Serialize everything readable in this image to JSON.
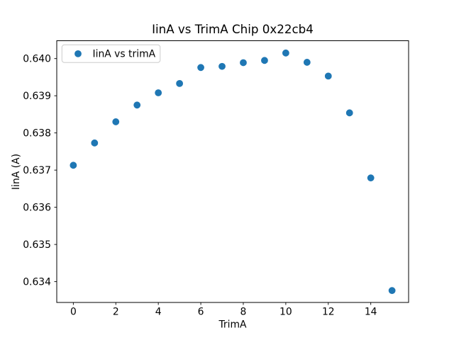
{
  "chart_data": {
    "type": "scatter",
    "title": "IinA vs TrimA Chip 0x22cb4",
    "xlabel": "TrimA",
    "ylabel": "IinA (A)",
    "legend": [
      "IinA vs trimA"
    ],
    "legend_position": "upper left",
    "marker_color": "#1f77b4",
    "grid": false,
    "x": [
      0,
      1,
      2,
      3,
      4,
      5,
      6,
      7,
      8,
      9,
      10,
      11,
      12,
      13,
      14,
      15
    ],
    "y": [
      0.63713,
      0.63773,
      0.6383,
      0.63875,
      0.63908,
      0.63933,
      0.63976,
      0.63979,
      0.63989,
      0.63995,
      0.64015,
      0.6399,
      0.63953,
      0.63854,
      0.63679,
      0.63376
    ],
    "xticks": [
      0,
      2,
      4,
      6,
      8,
      10,
      12,
      14
    ],
    "xtick_labels": [
      "0",
      "2",
      "4",
      "6",
      "8",
      "10",
      "12",
      "14"
    ],
    "yticks": [
      0.634,
      0.635,
      0.636,
      0.637,
      0.638,
      0.639,
      0.64
    ],
    "ytick_labels": [
      "0.634",
      "0.635",
      "0.636",
      "0.637",
      "0.638",
      "0.639",
      "0.640"
    ],
    "xlim": [
      -0.78,
      15.78
    ],
    "ylim": [
      0.63344,
      0.64048
    ]
  }
}
